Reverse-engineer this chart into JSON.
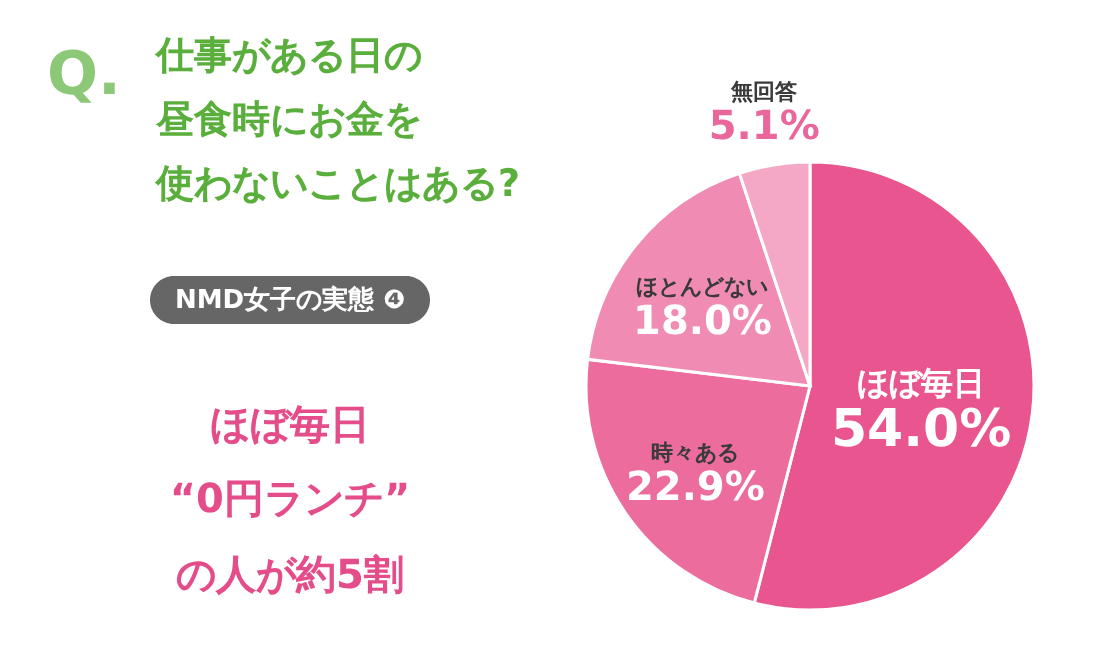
{
  "chart_data": {
    "type": "pie",
    "title": "仕事がある日の昼食時にお金を使わないことはある?",
    "categories": [
      "ほぼ毎日",
      "時々ある",
      "ほとんどない",
      "無回答"
    ],
    "values": [
      54.0,
      22.9,
      18.0,
      5.1
    ],
    "colors": [
      "#e9558f",
      "#ec6c9e",
      "#f08cb3",
      "#f4a8c5"
    ],
    "value_labels": [
      "54.0%",
      "22.9%",
      "18.0%",
      "5.1%"
    ],
    "annotations": [
      "Q.",
      "NMD女子の実態 ❹",
      "ほぼ毎日",
      "“0円ランチ”",
      "の人が約5割"
    ]
  }
}
